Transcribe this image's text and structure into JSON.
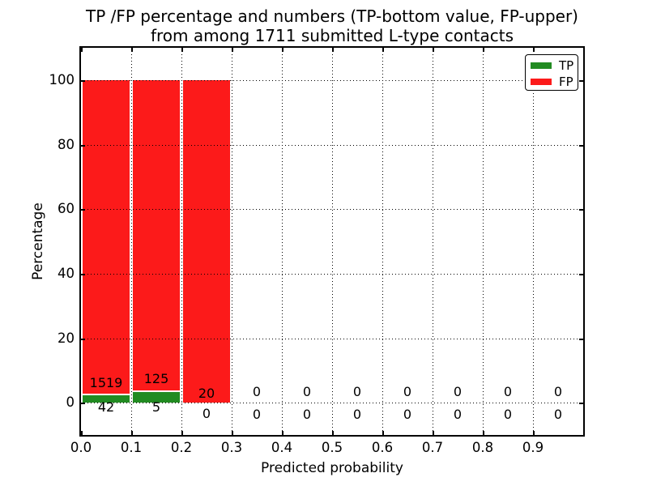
{
  "figure": {
    "background": "#ffffff"
  },
  "title": {
    "line1": "TP /FP percentage and numbers (TP-bottom value, FP-upper)",
    "line2": "from among 1711 submitted L-type contacts"
  },
  "axes": {
    "xlabel": "Predicted probability",
    "ylabel": "Percentage",
    "x_tick_labels": [
      "0.0",
      "0.1",
      "0.2",
      "0.3",
      "0.4",
      "0.5",
      "0.6",
      "0.7",
      "0.8",
      "0.9"
    ],
    "y_tick_labels": [
      "0",
      "20",
      "40",
      "60",
      "80",
      "100"
    ]
  },
  "legend": {
    "items": [
      {
        "label": "TP",
        "color": "#228b22"
      },
      {
        "label": "FP",
        "color": "#fc1a1a"
      }
    ]
  },
  "chart_data": {
    "type": "bar",
    "stacked": true,
    "title": "TP /FP percentage and numbers (TP-bottom value, FP-upper) from among 1711 submitted L-type contacts",
    "xlabel": "Predicted probability",
    "ylabel": "Percentage",
    "xlim": [
      0.0,
      1.0
    ],
    "ylim": [
      -10,
      110
    ],
    "grid": "dotted, both axes",
    "legend_position": "upper right",
    "total_contacts": 1711,
    "bin_width": 0.1,
    "bins": [
      "0.0-0.1",
      "0.1-0.2",
      "0.2-0.3",
      "0.3-0.4",
      "0.4-0.5",
      "0.5-0.6",
      "0.6-0.7",
      "0.7-0.8",
      "0.8-0.9",
      "0.9-1.0"
    ],
    "series": [
      {
        "name": "TP",
        "color": "#228b22",
        "counts": [
          42,
          5,
          0,
          0,
          0,
          0,
          0,
          0,
          0,
          0
        ],
        "percent_of_bin": [
          2.7,
          3.8,
          0,
          0,
          0,
          0,
          0,
          0,
          0,
          0
        ]
      },
      {
        "name": "FP",
        "color": "#fc1a1a",
        "counts": [
          1519,
          125,
          20,
          0,
          0,
          0,
          0,
          0,
          0,
          0
        ],
        "percent_of_bin": [
          97.3,
          96.2,
          100,
          0,
          0,
          0,
          0,
          0,
          0,
          0
        ]
      }
    ]
  }
}
